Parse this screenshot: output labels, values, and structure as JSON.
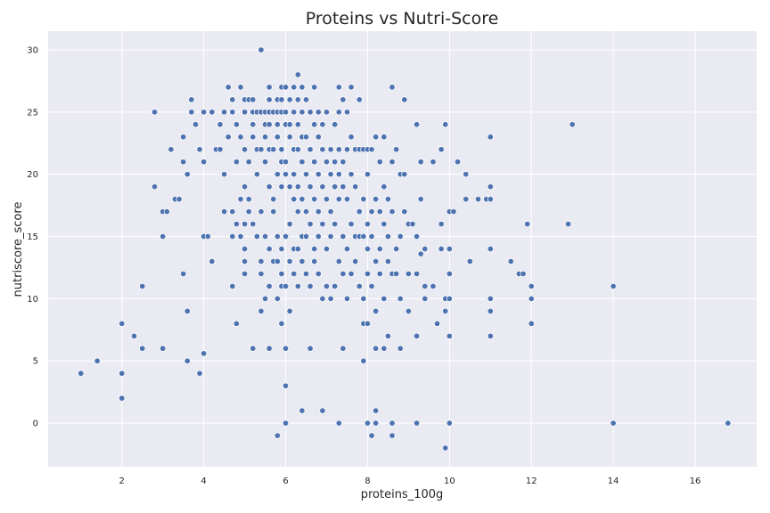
{
  "chart_data": {
    "type": "scatter",
    "title": "Proteins vs Nutri-Score",
    "xlabel": "proteins_100g",
    "ylabel": "nutriscore_score",
    "xlim": [
      0.2,
      17.5
    ],
    "ylim": [
      -3.5,
      31.5
    ],
    "xticks": [
      2,
      4,
      6,
      8,
      10,
      12,
      14,
      16
    ],
    "yticks": [
      0,
      5,
      10,
      15,
      20,
      25,
      30
    ],
    "grid": true,
    "background": "#eaeaf2",
    "point_color": "#4c72b0",
    "points": [
      [
        1.0,
        4
      ],
      [
        1.4,
        5
      ],
      [
        2.0,
        8
      ],
      [
        2.0,
        4
      ],
      [
        2.0,
        2
      ],
      [
        2.3,
        7
      ],
      [
        2.5,
        6
      ],
      [
        2.5,
        11
      ],
      [
        2.8,
        25
      ],
      [
        2.8,
        19
      ],
      [
        3.0,
        17
      ],
      [
        3.0,
        15
      ],
      [
        3.0,
        6
      ],
      [
        3.1,
        17
      ],
      [
        3.2,
        22
      ],
      [
        3.3,
        18
      ],
      [
        3.4,
        18
      ],
      [
        3.5,
        23
      ],
      [
        3.5,
        21
      ],
      [
        3.5,
        12
      ],
      [
        3.6,
        20
      ],
      [
        3.6,
        9
      ],
      [
        3.6,
        5
      ],
      [
        3.7,
        26
      ],
      [
        3.7,
        25
      ],
      [
        3.8,
        24
      ],
      [
        3.9,
        22
      ],
      [
        3.9,
        4
      ],
      [
        4.0,
        25
      ],
      [
        4.0,
        21
      ],
      [
        4.0,
        15
      ],
      [
        4.1,
        15
      ],
      [
        4.0,
        5.6
      ],
      [
        4.2,
        25
      ],
      [
        4.2,
        13
      ],
      [
        4.3,
        22
      ],
      [
        4.4,
        24
      ],
      [
        4.4,
        22
      ],
      [
        4.5,
        25
      ],
      [
        4.5,
        20
      ],
      [
        4.5,
        17
      ],
      [
        4.6,
        27
      ],
      [
        4.6,
        23
      ],
      [
        4.7,
        26
      ],
      [
        4.7,
        25
      ],
      [
        4.7,
        17
      ],
      [
        4.7,
        15
      ],
      [
        4.7,
        11
      ],
      [
        4.8,
        24
      ],
      [
        4.8,
        21
      ],
      [
        4.8,
        16
      ],
      [
        4.8,
        8
      ],
      [
        4.9,
        27
      ],
      [
        4.9,
        23
      ],
      [
        4.9,
        18
      ],
      [
        4.9,
        15
      ],
      [
        5.0,
        26
      ],
      [
        5.0,
        25
      ],
      [
        5.0,
        22
      ],
      [
        5.0,
        19
      ],
      [
        5.0,
        16
      ],
      [
        5.0,
        14
      ],
      [
        5.0,
        13
      ],
      [
        5.0,
        12
      ],
      [
        5.1,
        26
      ],
      [
        5.1,
        21
      ],
      [
        5.1,
        18
      ],
      [
        5.1,
        17
      ],
      [
        5.2,
        26
      ],
      [
        5.2,
        25
      ],
      [
        5.2,
        24
      ],
      [
        5.2,
        23
      ],
      [
        5.2,
        16
      ],
      [
        5.2,
        6
      ],
      [
        5.3,
        25
      ],
      [
        5.3,
        22
      ],
      [
        5.3,
        20
      ],
      [
        5.3,
        15
      ],
      [
        5.4,
        30
      ],
      [
        5.4,
        25
      ],
      [
        5.4,
        22
      ],
      [
        5.4,
        17
      ],
      [
        5.4,
        13
      ],
      [
        5.4,
        12
      ],
      [
        5.4,
        9
      ],
      [
        5.5,
        25
      ],
      [
        5.5,
        24
      ],
      [
        5.5,
        23
      ],
      [
        5.5,
        21
      ],
      [
        5.5,
        15
      ],
      [
        5.5,
        10
      ],
      [
        5.6,
        27
      ],
      [
        5.6,
        26
      ],
      [
        5.6,
        25
      ],
      [
        5.6,
        24
      ],
      [
        5.6,
        22
      ],
      [
        5.6,
        19
      ],
      [
        5.6,
        14
      ],
      [
        5.6,
        11
      ],
      [
        5.6,
        6
      ],
      [
        5.7,
        25
      ],
      [
        5.7,
        22
      ],
      [
        5.7,
        18
      ],
      [
        5.7,
        17
      ],
      [
        5.7,
        13
      ],
      [
        5.8,
        26
      ],
      [
        5.8,
        25
      ],
      [
        5.8,
        24
      ],
      [
        5.8,
        23
      ],
      [
        5.8,
        20
      ],
      [
        5.8,
        15
      ],
      [
        5.8,
        13
      ],
      [
        5.8,
        10
      ],
      [
        5.8,
        -1
      ],
      [
        5.9,
        27
      ],
      [
        5.9,
        26
      ],
      [
        5.9,
        25
      ],
      [
        5.9,
        22
      ],
      [
        5.9,
        21
      ],
      [
        5.9,
        19
      ],
      [
        5.9,
        14
      ],
      [
        5.9,
        12
      ],
      [
        5.9,
        11
      ],
      [
        5.9,
        8
      ],
      [
        6.0,
        27
      ],
      [
        6.0,
        25
      ],
      [
        6.0,
        24
      ],
      [
        6.0,
        21
      ],
      [
        6.0,
        20
      ],
      [
        6.0,
        15
      ],
      [
        6.0,
        11
      ],
      [
        6.0,
        6
      ],
      [
        6.0,
        3
      ],
      [
        6.0,
        0
      ],
      [
        6.1,
        26
      ],
      [
        6.1,
        24
      ],
      [
        6.1,
        23
      ],
      [
        6.1,
        19
      ],
      [
        6.1,
        16
      ],
      [
        6.1,
        13
      ],
      [
        6.1,
        9
      ],
      [
        6.2,
        27
      ],
      [
        6.2,
        25
      ],
      [
        6.2,
        22
      ],
      [
        6.2,
        20
      ],
      [
        6.2,
        18
      ],
      [
        6.2,
        14
      ],
      [
        6.2,
        12
      ],
      [
        6.3,
        28
      ],
      [
        6.3,
        26
      ],
      [
        6.3,
        24
      ],
      [
        6.3,
        22
      ],
      [
        6.3,
        19
      ],
      [
        6.3,
        17
      ],
      [
        6.3,
        14
      ],
      [
        6.3,
        11
      ],
      [
        6.4,
        27
      ],
      [
        6.4,
        25
      ],
      [
        6.4,
        23
      ],
      [
        6.4,
        21
      ],
      [
        6.4,
        18
      ],
      [
        6.4,
        15
      ],
      [
        6.4,
        13
      ],
      [
        6.4,
        1
      ],
      [
        6.5,
        26
      ],
      [
        6.5,
        23
      ],
      [
        6.5,
        20
      ],
      [
        6.5,
        17
      ],
      [
        6.5,
        15
      ],
      [
        6.5,
        12
      ],
      [
        6.6,
        25
      ],
      [
        6.6,
        22
      ],
      [
        6.6,
        19
      ],
      [
        6.6,
        16
      ],
      [
        6.6,
        11
      ],
      [
        6.6,
        6
      ],
      [
        6.7,
        27
      ],
      [
        6.7,
        24
      ],
      [
        6.7,
        21
      ],
      [
        6.7,
        18
      ],
      [
        6.7,
        14
      ],
      [
        6.7,
        13
      ],
      [
        6.8,
        25
      ],
      [
        6.8,
        23
      ],
      [
        6.8,
        20
      ],
      [
        6.8,
        17
      ],
      [
        6.8,
        15
      ],
      [
        6.8,
        12
      ],
      [
        6.9,
        24
      ],
      [
        6.9,
        22
      ],
      [
        6.9,
        19
      ],
      [
        6.9,
        16
      ],
      [
        6.9,
        10
      ],
      [
        6.9,
        1
      ],
      [
        7.0,
        25
      ],
      [
        7.0,
        21
      ],
      [
        7.0,
        18
      ],
      [
        7.0,
        14
      ],
      [
        7.0,
        11
      ],
      [
        7.1,
        22
      ],
      [
        7.1,
        20
      ],
      [
        7.1,
        17
      ],
      [
        7.1,
        15
      ],
      [
        7.1,
        10
      ],
      [
        7.2,
        24
      ],
      [
        7.2,
        21
      ],
      [
        7.2,
        19
      ],
      [
        7.2,
        16
      ],
      [
        7.2,
        11
      ],
      [
        7.3,
        27
      ],
      [
        7.3,
        25
      ],
      [
        7.3,
        22
      ],
      [
        7.3,
        20
      ],
      [
        7.3,
        18
      ],
      [
        7.3,
        13
      ],
      [
        7.3,
        0
      ],
      [
        7.4,
        26
      ],
      [
        7.4,
        21
      ],
      [
        7.4,
        19
      ],
      [
        7.4,
        15
      ],
      [
        7.4,
        12
      ],
      [
        7.4,
        6
      ],
      [
        7.5,
        25
      ],
      [
        7.5,
        22
      ],
      [
        7.5,
        18
      ],
      [
        7.5,
        14
      ],
      [
        7.5,
        10
      ],
      [
        7.6,
        27
      ],
      [
        7.6,
        23
      ],
      [
        7.6,
        20
      ],
      [
        7.6,
        16
      ],
      [
        7.6,
        12
      ],
      [
        7.7,
        22
      ],
      [
        7.7,
        19
      ],
      [
        7.7,
        15
      ],
      [
        7.7,
        13
      ],
      [
        7.8,
        26
      ],
      [
        7.8,
        22
      ],
      [
        7.8,
        17
      ],
      [
        7.8,
        15
      ],
      [
        7.8,
        11
      ],
      [
        7.9,
        22
      ],
      [
        7.9,
        18
      ],
      [
        7.9,
        15
      ],
      [
        7.9,
        10
      ],
      [
        7.9,
        8
      ],
      [
        7.9,
        5
      ],
      [
        8.0,
        22
      ],
      [
        8.0,
        20
      ],
      [
        8.0,
        16
      ],
      [
        8.0,
        14
      ],
      [
        8.0,
        12
      ],
      [
        8.0,
        8
      ],
      [
        8.0,
        0
      ],
      [
        8.1,
        22
      ],
      [
        8.1,
        17
      ],
      [
        8.1,
        15
      ],
      [
        8.1,
        11
      ],
      [
        8.1,
        -1
      ],
      [
        8.2,
        23
      ],
      [
        8.2,
        18
      ],
      [
        8.2,
        13
      ],
      [
        8.2,
        9
      ],
      [
        8.2,
        6
      ],
      [
        8.2,
        1
      ],
      [
        8.2,
        0
      ],
      [
        8.3,
        21
      ],
      [
        8.3,
        17
      ],
      [
        8.3,
        14
      ],
      [
        8.3,
        12
      ],
      [
        8.4,
        23
      ],
      [
        8.4,
        19
      ],
      [
        8.4,
        16
      ],
      [
        8.4,
        10
      ],
      [
        8.4,
        6
      ],
      [
        8.5,
        18
      ],
      [
        8.5,
        15
      ],
      [
        8.5,
        13
      ],
      [
        8.5,
        7
      ],
      [
        8.6,
        27
      ],
      [
        8.6,
        21
      ],
      [
        8.6,
        17
      ],
      [
        8.6,
        12
      ],
      [
        8.6,
        0
      ],
      [
        8.6,
        -1
      ],
      [
        8.7,
        22
      ],
      [
        8.7,
        14
      ],
      [
        8.7,
        12
      ],
      [
        8.8,
        20
      ],
      [
        8.8,
        15
      ],
      [
        8.8,
        10
      ],
      [
        8.8,
        6
      ],
      [
        8.9,
        26
      ],
      [
        8.9,
        20
      ],
      [
        8.9,
        17
      ],
      [
        9.0,
        16
      ],
      [
        9.0,
        12
      ],
      [
        9.0,
        9
      ],
      [
        9.1,
        16
      ],
      [
        9.2,
        24
      ],
      [
        9.2,
        15
      ],
      [
        9.2,
        12
      ],
      [
        9.2,
        7
      ],
      [
        9.2,
        0
      ],
      [
        9.3,
        21
      ],
      [
        9.3,
        18
      ],
      [
        9.3,
        13.6
      ],
      [
        9.4,
        14
      ],
      [
        9.4,
        11
      ],
      [
        9.4,
        10
      ],
      [
        9.6,
        21
      ],
      [
        9.6,
        11
      ],
      [
        9.7,
        8
      ],
      [
        9.8,
        22
      ],
      [
        9.8,
        16
      ],
      [
        9.8,
        14
      ],
      [
        9.9,
        24
      ],
      [
        9.9,
        10
      ],
      [
        9.9,
        9
      ],
      [
        9.9,
        -2
      ],
      [
        10.0,
        17
      ],
      [
        10.0,
        14
      ],
      [
        10.0,
        12
      ],
      [
        10.0,
        10
      ],
      [
        10.0,
        7
      ],
      [
        10.0,
        0
      ],
      [
        10.1,
        17
      ],
      [
        10.2,
        21
      ],
      [
        10.4,
        20
      ],
      [
        10.4,
        18
      ],
      [
        10.5,
        13
      ],
      [
        10.7,
        18
      ],
      [
        10.9,
        18
      ],
      [
        11.0,
        23
      ],
      [
        11.0,
        19
      ],
      [
        11.0,
        18
      ],
      [
        11.0,
        14
      ],
      [
        11.0,
        10
      ],
      [
        11.0,
        9
      ],
      [
        11.0,
        7
      ],
      [
        11.5,
        13
      ],
      [
        11.7,
        12
      ],
      [
        11.8,
        12
      ],
      [
        11.9,
        16
      ],
      [
        12.0,
        11
      ],
      [
        12.0,
        10
      ],
      [
        12.0,
        8
      ],
      [
        12.9,
        16
      ],
      [
        13.0,
        24
      ],
      [
        14.0,
        11
      ],
      [
        14.0,
        0
      ],
      [
        16.8,
        0
      ]
    ]
  }
}
